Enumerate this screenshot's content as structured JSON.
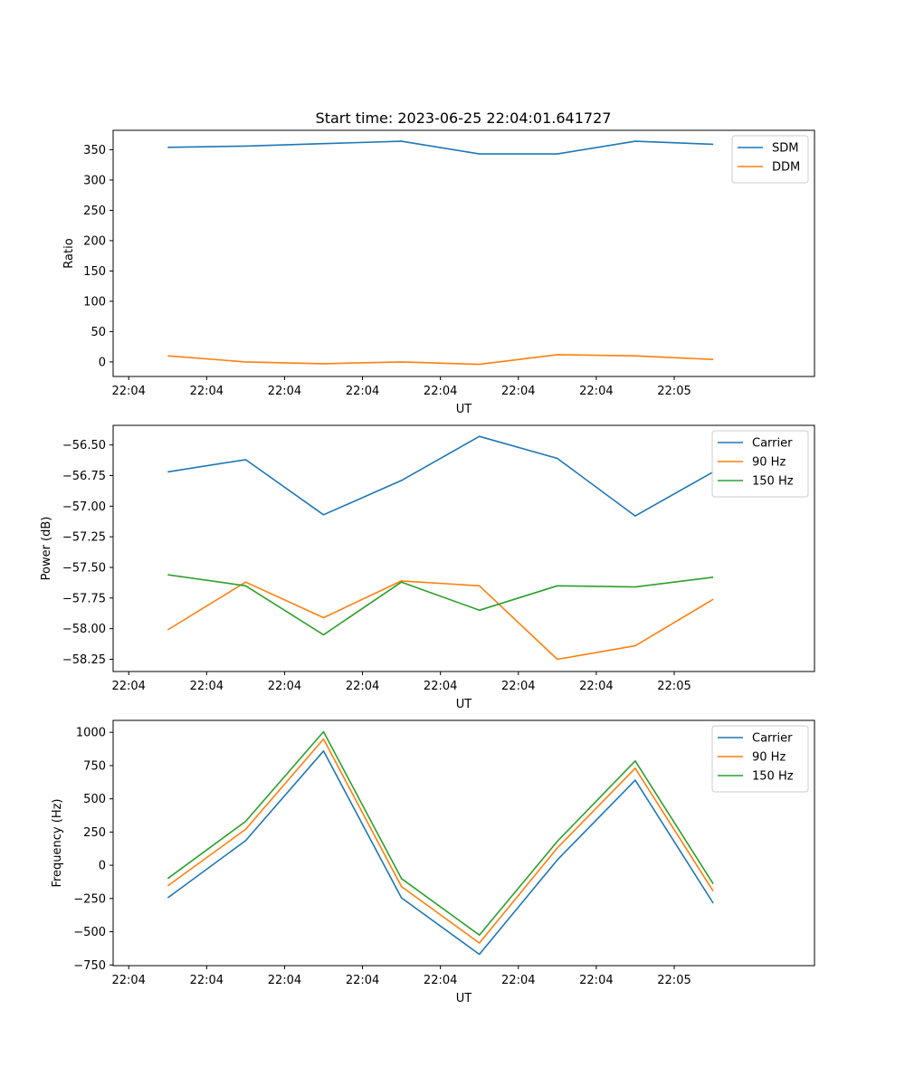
{
  "figure": {
    "title": "Start time: 2023-06-25 22:04:01.641727"
  },
  "chart_data": [
    {
      "type": "line",
      "title": "Start time: 2023-06-25 22:04:01.641727",
      "xlabel": "UT",
      "ylabel": "Ratio",
      "x_tick_labels": [
        "22:04",
        "22:04",
        "22:04",
        "22:04",
        "22:04",
        "22:04",
        "22:04"
      ],
      "x_last_tick_label": "22:05",
      "xlim": [
        -0.2,
        8.8
      ],
      "x": [
        0.5,
        1.5,
        2.5,
        3.5,
        4.5,
        5.5,
        6.5,
        7.5
      ],
      "ylim": [
        -24,
        382
      ],
      "y_ticks": [
        0,
        50,
        100,
        150,
        200,
        250,
        300,
        350
      ],
      "legend": "top-right",
      "series": [
        {
          "name": "SDM",
          "color": "#1f77b4",
          "values": [
            354,
            356,
            360,
            364,
            343,
            343,
            364,
            359
          ]
        },
        {
          "name": "DDM",
          "color": "#ff7f0e",
          "values": [
            10,
            0,
            -3,
            0,
            -4,
            12,
            10,
            4
          ]
        }
      ]
    },
    {
      "type": "line",
      "xlabel": "UT",
      "ylabel": "Power (dB)",
      "x_tick_labels": [
        "22:04",
        "22:04",
        "22:04",
        "22:04",
        "22:04",
        "22:04",
        "22:04"
      ],
      "x_last_tick_label": "22:05",
      "xlim": [
        -0.2,
        8.8
      ],
      "x": [
        0.5,
        1.5,
        2.5,
        3.5,
        4.5,
        5.5,
        6.5,
        7.5
      ],
      "ylim": [
        -58.35,
        -56.34
      ],
      "y_ticks": [
        -58.25,
        -58.0,
        -57.75,
        -57.5,
        -57.25,
        -57.0,
        -56.75,
        -56.5
      ],
      "y_tick_labels": [
        "−58.25",
        "−58.00",
        "−57.75",
        "−57.50",
        "−57.25",
        "−57.00",
        "−56.75",
        "−56.50"
      ],
      "legend": "top-right",
      "series": [
        {
          "name": "Carrier",
          "color": "#1f77b4",
          "values": [
            -56.72,
            -56.62,
            -57.07,
            -56.79,
            -56.43,
            -56.61,
            -57.08,
            -56.72
          ]
        },
        {
          "name": "90 Hz",
          "color": "#ff7f0e",
          "values": [
            -58.01,
            -57.62,
            -57.91,
            -57.61,
            -57.65,
            -58.25,
            -58.14,
            -57.76
          ]
        },
        {
          "name": "150 Hz",
          "color": "#2ca02c",
          "values": [
            -57.56,
            -57.65,
            -58.05,
            -57.62,
            -57.85,
            -57.65,
            -57.66,
            -57.58
          ]
        }
      ]
    },
    {
      "type": "line",
      "xlabel": "UT",
      "ylabel": "Frequency (Hz)",
      "x_tick_labels": [
        "22:04",
        "22:04",
        "22:04",
        "22:04",
        "22:04",
        "22:04",
        "22:04"
      ],
      "x_last_tick_label": "22:05",
      "xlim": [
        -0.2,
        8.8
      ],
      "x": [
        0.5,
        1.5,
        2.5,
        3.5,
        4.5,
        5.5,
        6.5,
        7.5
      ],
      "ylim": [
        -755,
        1090
      ],
      "y_ticks": [
        -750,
        -500,
        -250,
        0,
        250,
        500,
        750,
        1000
      ],
      "y_tick_labels": [
        "−750",
        "−500",
        "−250",
        "0",
        "250",
        "500",
        "750",
        "1000"
      ],
      "legend": "top-right",
      "series": [
        {
          "name": "Carrier",
          "color": "#1f77b4",
          "values": [
            -245,
            185,
            860,
            -245,
            -670,
            40,
            640,
            -285
          ]
        },
        {
          "name": "90 Hz",
          "color": "#ff7f0e",
          "values": [
            -155,
            270,
            950,
            -160,
            -585,
            130,
            730,
            -195
          ]
        },
        {
          "name": "150 Hz",
          "color": "#2ca02c",
          "values": [
            -100,
            330,
            1005,
            -100,
            -525,
            180,
            785,
            -140
          ]
        }
      ]
    }
  ]
}
